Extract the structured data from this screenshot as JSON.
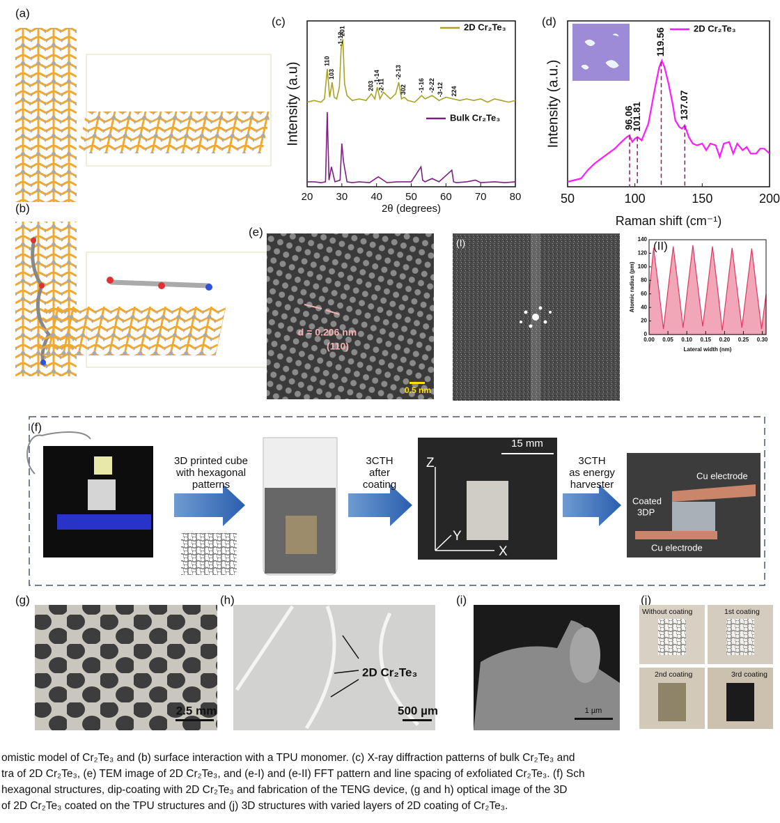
{
  "panels": {
    "a": {
      "label": "(a)"
    },
    "b": {
      "label": "(b)"
    },
    "c": {
      "label": "(c)",
      "type": "line",
      "xlabel": "2θ (degrees)",
      "ylabel": "Intensity (a.u)",
      "xlim": [
        20,
        80
      ],
      "xticks": [
        20,
        30,
        40,
        50,
        60,
        70,
        80
      ],
      "ylim": [
        0,
        100
      ],
      "series": [
        {
          "name": "2D Cr₂Te₃",
          "color": "#a8a324",
          "x": [
            20,
            22,
            24,
            25,
            25.8,
            26.5,
            27.2,
            27.8,
            28.5,
            29.3,
            29.8,
            30.3,
            30.8,
            31.5,
            33,
            35,
            37,
            38.5,
            39.5,
            40.2,
            41,
            42,
            44,
            45.5,
            46.4,
            47.2,
            48,
            49,
            51,
            53,
            54,
            56,
            58,
            60,
            62,
            64,
            66,
            68,
            70,
            72,
            74,
            76,
            78,
            80
          ],
          "values": [
            51,
            52,
            51,
            53,
            71,
            54,
            63,
            54,
            53,
            60,
            83,
            89,
            62,
            55,
            52,
            53,
            52,
            56,
            53,
            60,
            53,
            57,
            53,
            56,
            63,
            53,
            54,
            52,
            51,
            55,
            53,
            55,
            52,
            54,
            53,
            52,
            53,
            52,
            53,
            51,
            53,
            52,
            51,
            52
          ]
        },
        {
          "name": "Bulk Cr₂Te₃",
          "color": "#7d1f80",
          "x": [
            20,
            22,
            24,
            25.3,
            25.8,
            26.3,
            27,
            28,
            29.5,
            30,
            30.5,
            31.5,
            33,
            35,
            38,
            40.5,
            43,
            46,
            50,
            52.8,
            53.3,
            54,
            56,
            58,
            61.7,
            62.2,
            63,
            66,
            68.5,
            70,
            74,
            77,
            80
          ],
          "values": [
            3,
            3,
            2.5,
            3,
            45,
            4,
            12,
            3,
            4,
            26,
            15,
            3,
            2.5,
            3,
            2.5,
            6,
            2.5,
            3,
            3,
            12,
            4,
            3,
            5,
            3,
            10,
            3,
            2.5,
            3,
            4,
            2.5,
            3,
            2.5,
            3
          ]
        }
      ],
      "peaks": [
        {
          "label": "110",
          "x": 25.8
        },
        {
          "label": "103",
          "x": 27.2
        },
        {
          "label": "-1-12",
          "x": 29.8
        },
        {
          "label": "201",
          "x": 30.3
        },
        {
          "label": "203",
          "x": 38.5
        },
        {
          "label": "-1-14",
          "x": 40.2
        },
        {
          "label": "-2-11",
          "x": 41.5
        },
        {
          "label": "-2-13",
          "x": 46.4
        },
        {
          "label": "302",
          "x": 47.8
        },
        {
          "label": "-1-16",
          "x": 53
        },
        {
          "label": "-2-22",
          "x": 56
        },
        {
          "label": "-3-12",
          "x": 58.5
        },
        {
          "label": "224",
          "x": 62.5
        }
      ]
    },
    "d": {
      "label": "(d)",
      "type": "line",
      "xlabel": "Raman shift (cm⁻¹)",
      "ylabel": "Intensity (a.u.)",
      "xlim": [
        50,
        200
      ],
      "xticks": [
        50,
        100,
        150,
        200
      ],
      "ylim": [
        0,
        100
      ],
      "series": [
        {
          "name": "2D Cr₂Te₃",
          "color": "#ff1aff",
          "x": [
            50,
            55,
            60,
            65,
            70,
            75,
            80,
            85,
            90,
            94,
            96,
            98,
            100,
            102,
            105,
            110,
            115,
            118,
            120,
            122,
            125,
            128,
            130,
            133,
            135,
            137,
            140,
            143,
            146,
            150,
            153,
            156,
            160,
            163,
            166,
            170,
            173,
            176,
            180,
            183,
            186,
            190,
            193,
            196,
            200
          ],
          "values": [
            3,
            4,
            5,
            10,
            14,
            17,
            20,
            23,
            27,
            30,
            31,
            27,
            29,
            30,
            28,
            38,
            60,
            72,
            76,
            72,
            62,
            50,
            40,
            36,
            35,
            37,
            30,
            26,
            25,
            26,
            22,
            26,
            25,
            18,
            26,
            27,
            20,
            26,
            22,
            24,
            20,
            20,
            23,
            23,
            20
          ]
        }
      ],
      "peaks": [
        96.06,
        101.81,
        119.56,
        137.07
      ]
    },
    "e": {
      "label": "(e)",
      "annotation": "d = 0.206 nm",
      "plane": "(110)",
      "scale": "0.5 nm",
      "fft_label": "(I)",
      "profile": {
        "label": "(II)",
        "type": "area",
        "xlabel": "Lateral width (nm)",
        "ylabel": "Atomic radius (pm)",
        "xlim": [
          0,
          0.31
        ],
        "xticks": [
          {
            "value": 0,
            "label": "0.00"
          },
          0.05,
          {
            "value": 0.1,
            "label": "0.10"
          },
          0.15,
          {
            "value": 0.2,
            "label": "0.20"
          },
          0.25,
          {
            "value": 0.3,
            "label": "0.30"
          }
        ],
        "ylim": [
          0,
          140
        ],
        "yticks": [
          0,
          20,
          40,
          60,
          80,
          100,
          120,
          140
        ],
        "color": "#e0365f",
        "x": [
          0,
          0.012,
          0.025,
          0.038,
          0.051,
          0.064,
          0.077,
          0.09,
          0.103,
          0.116,
          0.129,
          0.142,
          0.155,
          0.168,
          0.181,
          0.194,
          0.207,
          0.22,
          0.233,
          0.246,
          0.259,
          0.272,
          0.285,
          0.298,
          0.31
        ],
        "values": [
          60,
          128,
          70,
          8,
          70,
          130,
          72,
          10,
          72,
          132,
          72,
          12,
          70,
          130,
          70,
          6,
          68,
          128,
          68,
          10,
          70,
          127,
          66,
          8,
          60
        ]
      }
    },
    "f": {
      "label": "(f)",
      "step_1": [
        "3D printed cube",
        "with hexagonal",
        "patterns"
      ],
      "step_2": [
        "3CTH",
        "after",
        "coating"
      ],
      "step_3": [
        "3CTH",
        "as energy",
        "harvester"
      ],
      "scale": "15 mm",
      "axes": [
        "Z",
        "Y",
        "X"
      ],
      "electrode_top": "Cu electrode",
      "coated": [
        "Coated",
        "3DP"
      ],
      "electrode_bottom": "Cu electrode"
    },
    "g": {
      "label": "(g)",
      "scale": "2.5 mm"
    },
    "h": {
      "label": "(h)",
      "annotation": "2D Cr₂Te₃",
      "scale": "500 µm"
    },
    "i": {
      "label": "(i)",
      "scale": "1 µm"
    },
    "j": {
      "label": "(j)",
      "tiles": [
        "Without coating",
        "1st coating",
        "2nd coating",
        "3rd coating"
      ]
    }
  },
  "caption": {
    "lines": [
      "omistic model of Cr₂Te₃ and (b) surface interaction with a TPU monomer. (c) X-ray diffraction patterns of bulk Cr₂Te₃ and",
      "tra of 2D Cr₂Te₃, (e) TEM image of 2D Cr₂Te₃, and (e-I) and (e-II) FFT pattern and line spacing of exfoliated Cr₂Te₃. (f) Sch",
      "hexagonal structures, dip-coating with 2D Cr₂Te₃ and fabrication of the TENG device, (g and h) optical image of the 3D",
      "of 2D Cr₂Te₃ coated on the TPU structures and (j) 3D structures with varied layers of 2D coating of Cr₂Te₃."
    ]
  }
}
